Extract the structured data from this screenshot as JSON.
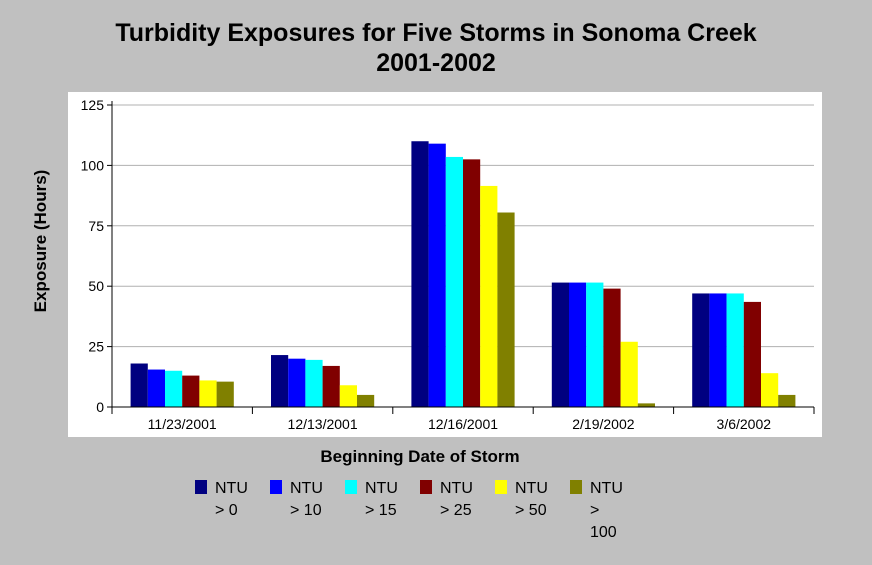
{
  "chart_data": {
    "type": "bar",
    "title": "Turbidity Exposures for Five Storms in Sonoma Creek",
    "subtitle": "2001-2002",
    "xlabel": "Beginning Date of Storm",
    "ylabel": "Exposure (Hours)",
    "ylim": [
      0,
      125
    ],
    "yticks": [
      "0",
      "25",
      "50",
      "75",
      "100",
      "125"
    ],
    "grid": true,
    "legend_position": "bottom",
    "categories": [
      "11/23/2001",
      "12/13/2001",
      "12/16/2001",
      "2/19/2002",
      "3/6/2002"
    ],
    "series": [
      {
        "name": "NTU > 0",
        "color": "#000080",
        "values": [
          18,
          21.5,
          110,
          51.5,
          47
        ]
      },
      {
        "name": "NTU > 10",
        "color": "#0000ff",
        "values": [
          15.5,
          20,
          109,
          51.5,
          47
        ]
      },
      {
        "name": "NTU > 15",
        "color": "#00ffff",
        "values": [
          15,
          19.5,
          103.5,
          51.5,
          47
        ]
      },
      {
        "name": "NTU > 25",
        "color": "#800000",
        "values": [
          13,
          17,
          102.5,
          49,
          43.5
        ]
      },
      {
        "name": "NTU > 50",
        "color": "#ffff00",
        "values": [
          11,
          9,
          91.5,
          27,
          14
        ]
      },
      {
        "name": "NTU > 100",
        "color": "#808000",
        "values": [
          10.5,
          5,
          80.5,
          1.5,
          5
        ]
      }
    ]
  },
  "legend_lines": [
    [
      "NTU",
      "> 0"
    ],
    [
      "NTU",
      "> 10"
    ],
    [
      "NTU",
      "> 15"
    ],
    [
      "NTU",
      "> 25"
    ],
    [
      "NTU",
      "> 50"
    ],
    [
      "NTU",
      ">",
      "100"
    ]
  ]
}
